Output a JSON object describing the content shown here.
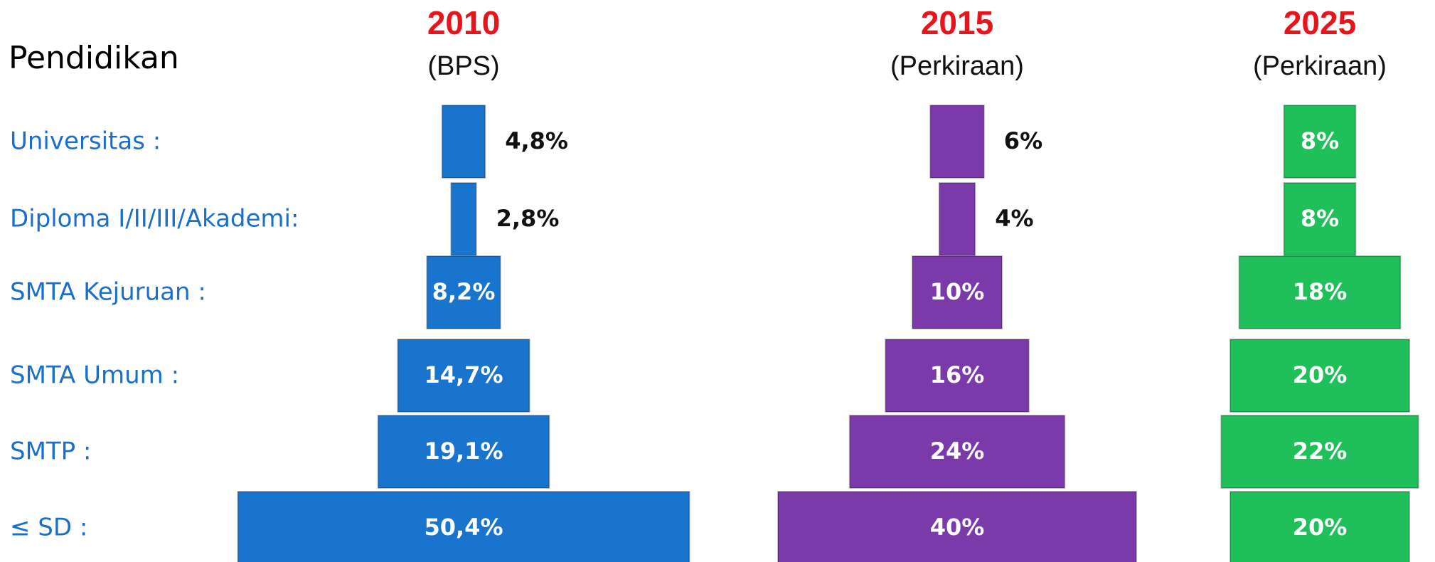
{
  "chart_data": {
    "type": "pyramid",
    "heading": "Pendidikan",
    "categories": [
      "≤ SD :",
      "SMTP :",
      "SMTA Umum :",
      "SMTA Kejuruan :",
      "Diploma I/II/III/Akademi:",
      "Universitas :"
    ],
    "series": [
      {
        "name": "2010",
        "subtitle": "(BPS)",
        "color": "#1874cd",
        "values": [
          50.4,
          19.1,
          14.7,
          8.2,
          2.8,
          4.8
        ],
        "value_labels": [
          "50,4%",
          "19,1%",
          "14,7%",
          "8,2%",
          "2,8%",
          "4,8%"
        ]
      },
      {
        "name": "2015",
        "subtitle": "(Perkiraan)",
        "color": "#7b3aaa",
        "values": [
          40,
          24,
          16,
          10,
          4,
          6
        ],
        "value_labels": [
          "40%",
          "24%",
          "16%",
          "10%",
          "4%",
          "6%"
        ]
      },
      {
        "name": "2025",
        "subtitle": "(Perkiraan)",
        "color": "#1fbf5a",
        "values": [
          20,
          22,
          20,
          18,
          8,
          8
        ],
        "value_labels": [
          "20%",
          "22%",
          "20%",
          "18%",
          "8%",
          "8%"
        ]
      }
    ]
  }
}
